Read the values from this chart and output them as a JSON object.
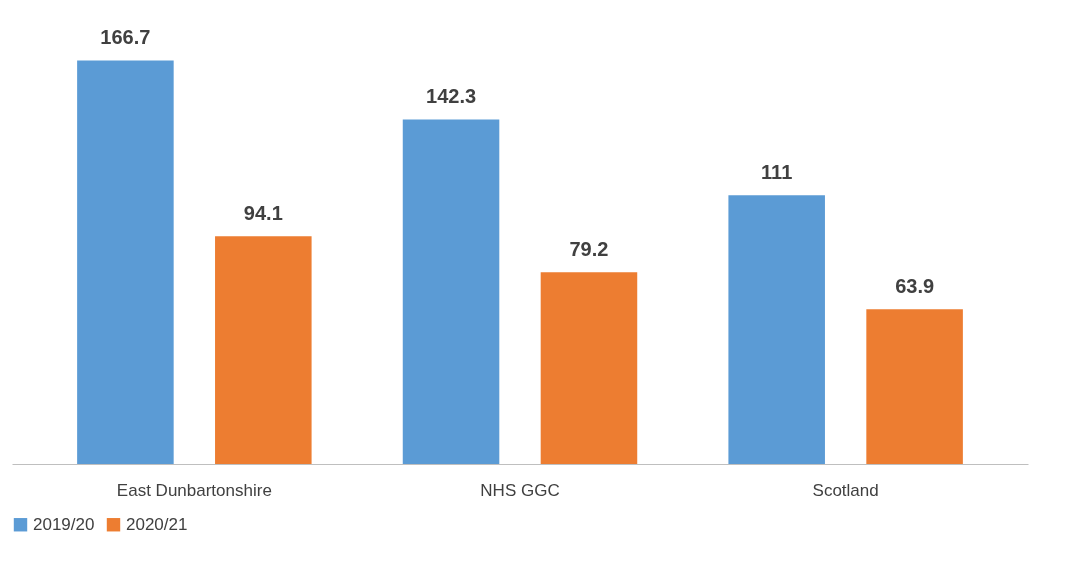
{
  "chart_data": {
    "type": "bar",
    "categories": [
      "East Dunbartonshire",
      "NHS GGC",
      "Scotland"
    ],
    "series": [
      {
        "name": "2019/20",
        "color": "#5b9bd5",
        "values": [
          166.7,
          142.3,
          111
        ]
      },
      {
        "name": "2020/21",
        "color": "#ed7d31",
        "values": [
          94.1,
          79.2,
          63.9
        ]
      }
    ],
    "data_labels": true,
    "legend": "bottom",
    "grid": false
  }
}
